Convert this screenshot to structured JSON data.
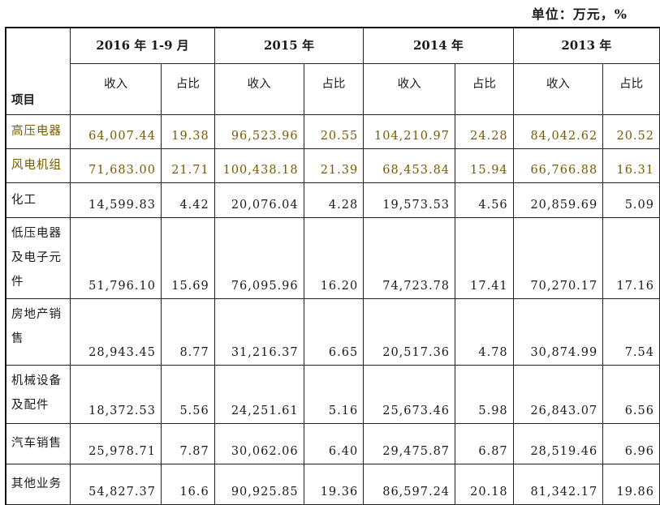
{
  "unit_label": "单位：万元，%",
  "table": {
    "item_header": "项目",
    "years": [
      "2016 年 1-9 月",
      "2015 年",
      "2014 年",
      "2013 年"
    ],
    "sub_headers": [
      "收入",
      "占比"
    ],
    "rows": [
      {
        "label": "高压电器",
        "values": [
          "64,007.44",
          "19.38",
          "96,523.96",
          "20.55",
          "104,210.97",
          "24.28",
          "84,042.62",
          "20.52"
        ],
        "highlight": true
      },
      {
        "label": "风电机组",
        "values": [
          "71,683.00",
          "21.71",
          "100,438.18",
          "21.39",
          "68,453.84",
          "15.94",
          "66,766.88",
          "16.31"
        ],
        "highlight": true
      },
      {
        "label": "化工",
        "values": [
          "14,599.83",
          "4.42",
          "20,076.04",
          "4.28",
          "19,573.53",
          "4.56",
          "20,859.69",
          "5.09"
        ]
      },
      {
        "label": "低压电器及电子元件",
        "values": [
          "51,796.10",
          "15.69",
          "76,095.96",
          "16.20",
          "74,723.78",
          "17.41",
          "70,270.17",
          "17.16"
        ]
      },
      {
        "label": "房地产销售",
        "values": [
          "28,943.45",
          "8.77",
          "31,216.37",
          "6.65",
          "20,517.36",
          "4.78",
          "30,874.99",
          "7.54"
        ]
      },
      {
        "label": "机械设备及配件",
        "values": [
          "18,372.53",
          "5.56",
          "24,251.61",
          "5.16",
          "25,673.46",
          "5.98",
          "26,843.07",
          "6.56"
        ]
      },
      {
        "label": "汽车销售",
        "values": [
          "25,978.71",
          "7.87",
          "30,062.06",
          "6.40",
          "29,475.87",
          "6.87",
          "28,519.46",
          "6.96"
        ]
      },
      {
        "label": "其他业务",
        "values": [
          "54,827.37",
          "16.6",
          "90,925.85",
          "19.36",
          "86,597.24",
          "20.18",
          "81,342.17",
          "19.86"
        ]
      }
    ]
  }
}
